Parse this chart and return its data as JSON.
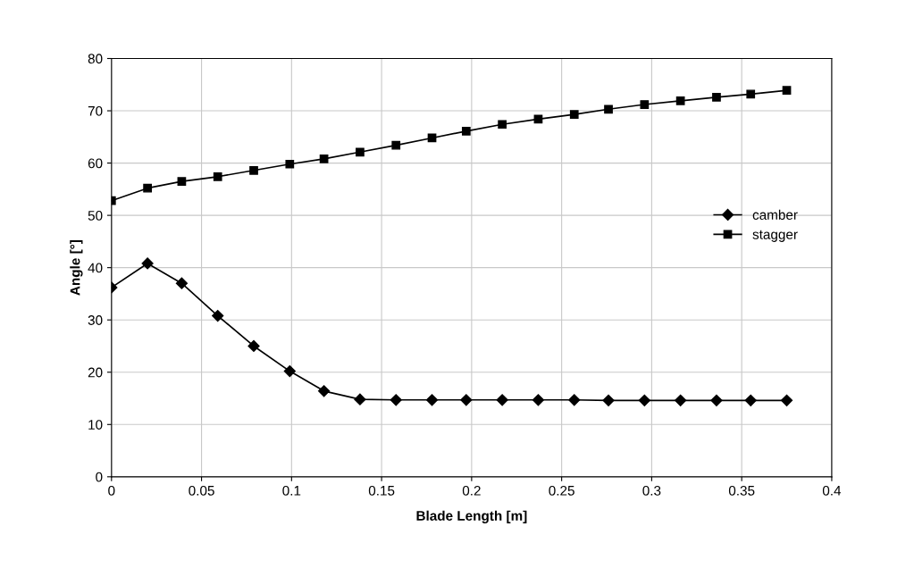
{
  "chart_data": {
    "type": "line",
    "xlabel": "Blade Length [m]",
    "ylabel": "Angle [°]",
    "x": [
      0,
      0.02,
      0.039,
      0.059,
      0.079,
      0.099,
      0.118,
      0.138,
      0.158,
      0.178,
      0.197,
      0.217,
      0.237,
      0.257,
      0.276,
      0.296,
      0.316,
      0.336,
      0.355,
      0.375
    ],
    "series": [
      {
        "name": "camber",
        "color": "#000000",
        "marker": "diamond",
        "values": [
          36.2,
          40.8,
          37,
          30.8,
          25,
          20.2,
          16.4,
          14.8,
          14.7,
          14.7,
          14.7,
          14.7,
          14.7,
          14.7,
          14.6,
          14.6,
          14.6,
          14.6,
          14.6,
          14.6
        ]
      },
      {
        "name": "stagger",
        "color": "#000000",
        "marker": "square",
        "values": [
          52.8,
          55.2,
          56.5,
          57.4,
          58.6,
          59.8,
          60.8,
          62.1,
          63.4,
          64.8,
          66.1,
          67.4,
          68.4,
          69.3,
          70.3,
          71.2,
          71.9,
          72.6,
          73.2,
          73.9
        ]
      }
    ],
    "xlim": [
      0,
      0.4
    ],
    "xticks": [
      0,
      0.05,
      0.1,
      0.15,
      0.2,
      0.25,
      0.3,
      0.35,
      0.4
    ],
    "ylim": [
      0,
      80
    ],
    "yticks": [
      0,
      10,
      20,
      30,
      40,
      50,
      60,
      70,
      80
    ],
    "grid": true,
    "legend": "center right",
    "line_style": "solid"
  }
}
